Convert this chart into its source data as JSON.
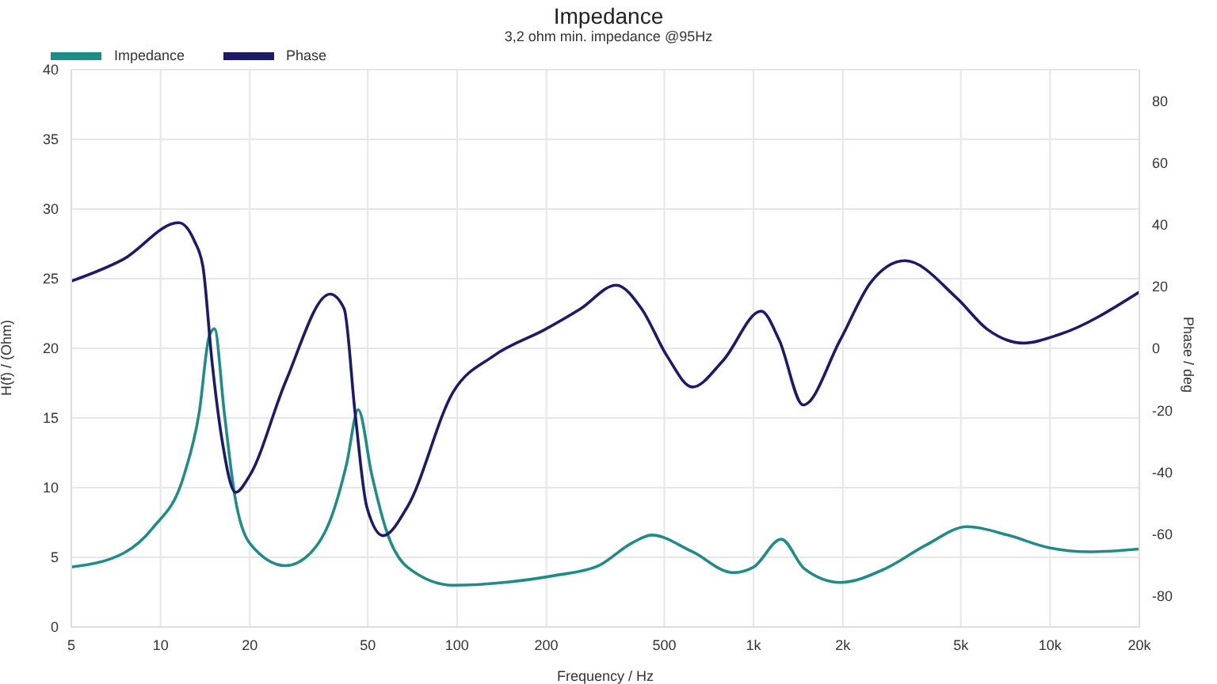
{
  "chart_data": {
    "type": "line",
    "title": "Impedance",
    "subtitle": "3,2 ohm min. impedance @95Hz",
    "xlabel": "Frequency / Hz",
    "ylabel": "H(f) / (Ohm)",
    "y2label": "Phase / deg",
    "log": "x",
    "grid": true,
    "legend": "top left",
    "marker": "none",
    "line_style": "solid",
    "xlim": [
      5,
      20000
    ],
    "xticks": [
      5,
      10,
      20,
      50,
      100,
      200,
      500,
      {
        "value": 1000,
        "label": "1k"
      },
      {
        "value": 2000,
        "label": "2k"
      },
      {
        "value": 5000,
        "label": "5k"
      },
      {
        "value": 10000,
        "label": "10k"
      },
      {
        "value": 20000,
        "label": "20k"
      }
    ],
    "ylim": [
      0,
      40
    ],
    "yticks": [
      0,
      5,
      10,
      15,
      20,
      25,
      30,
      35,
      40
    ],
    "y2lim": [
      -90,
      90
    ],
    "y2ticks": [
      -80,
      -60,
      -40,
      -20,
      0,
      20,
      40,
      60,
      80
    ],
    "series": [
      {
        "name": "Impedance",
        "color": "#1f8c86",
        "x": [
          5,
          7.5,
          9.4,
          12,
          13.5,
          14.6,
          15.2,
          16.4,
          17.8,
          20,
          26.4,
          32,
          37.7,
          42.4,
          46.4,
          51.6,
          58,
          68,
          97,
          144,
          214,
          300,
          387,
          453,
          622,
          853,
          1000,
          1240,
          1480,
          1960,
          2790,
          3830,
          5250,
          7190,
          9880,
          13550,
          20000
        ],
        "values": [
          4.3,
          5.3,
          7.1,
          10.9,
          15.4,
          20.9,
          21.4,
          15.4,
          9.4,
          6.0,
          4.4,
          5.3,
          7.9,
          11.7,
          15.6,
          10.9,
          6.8,
          4.3,
          3.0,
          3.2,
          3.7,
          4.4,
          6.0,
          6.6,
          5.4,
          3.9,
          4.3,
          6.3,
          4.2,
          3.2,
          4.2,
          5.9,
          7.2,
          6.6,
          5.7,
          5.4,
          5.6
        ]
      },
      {
        "name": "Phase",
        "color": "#1b1a6b",
        "axis": "y2",
        "x": [
          5,
          7.5,
          11.5,
          13,
          13.9,
          14.9,
          16.1,
          17.9,
          20,
          26.4,
          37.3,
          41.6,
          45.3,
          49.6,
          56.3,
          68,
          97,
          133,
          198,
          261,
          344,
          419,
          510,
          622,
          788,
          1060,
          1220,
          1470,
          1960,
          2480,
          3240,
          4850,
          6150,
          8110,
          10690,
          20000
        ],
        "values": [
          21.7,
          28.8,
          40.6,
          34.7,
          26.3,
          -4,
          -29.3,
          -46.5,
          -41,
          -10.8,
          17.5,
          12.8,
          -20.9,
          -51.2,
          -60.5,
          -51.2,
          -14.1,
          -2.4,
          6.1,
          12.8,
          20.4,
          12.8,
          -2.4,
          -12.5,
          -4,
          12,
          2.7,
          -18.3,
          2.7,
          21.2,
          28.3,
          16.2,
          6.1,
          1.7,
          4.4,
          18.2
        ]
      }
    ]
  }
}
